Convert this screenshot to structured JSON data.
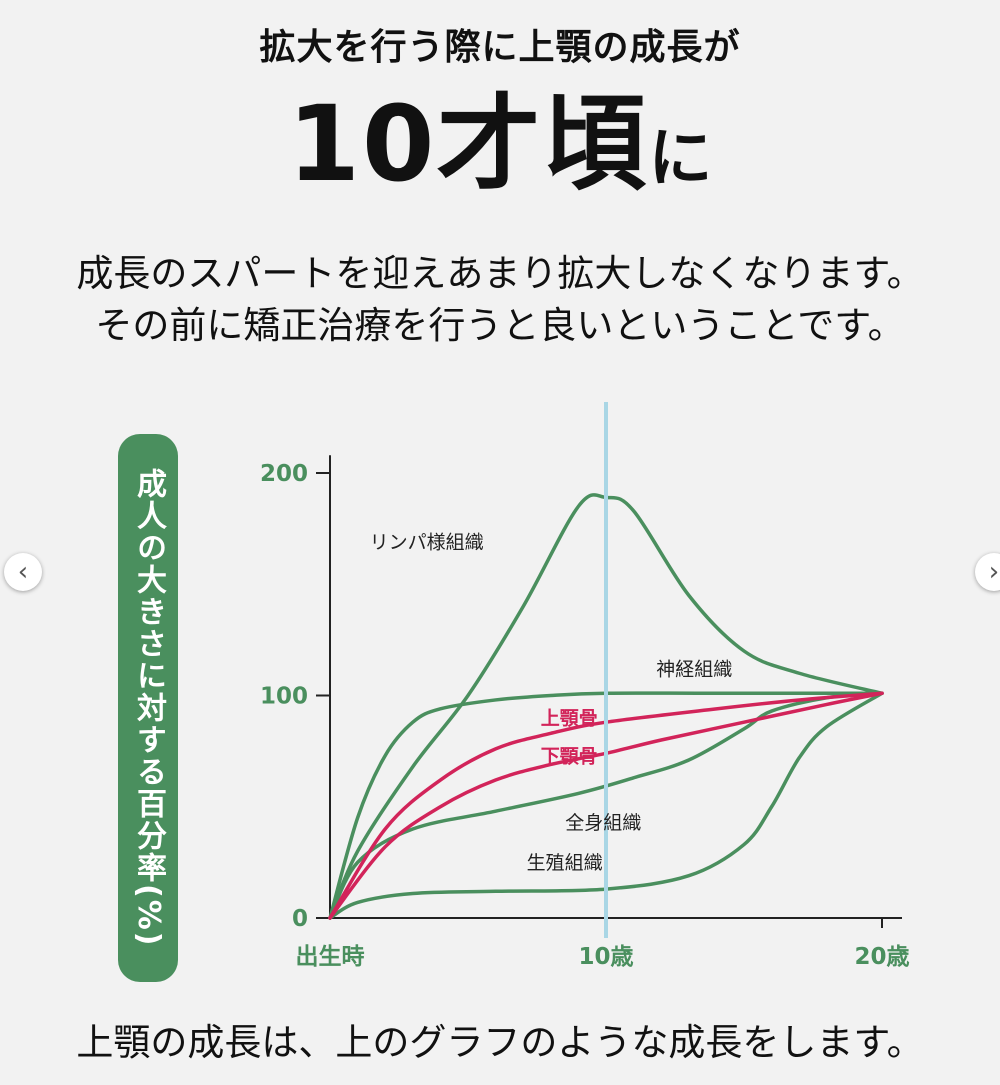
{
  "header": {
    "line1": "拡大を行う際に上顎の成長が",
    "big_main": "10才頃",
    "big_tail": "に",
    "lead_line1": "成長のスパートを迎えあまり拡大しなくなります。",
    "lead_line2": "その前に矯正治療を行うと良いということです。"
  },
  "footer": "上顎の成長は、上のグラフのような成長をします。",
  "nav": {
    "prev_icon": "chevron-left-icon",
    "next_icon": "chevron-right-icon",
    "prev": "‹",
    "next": "›"
  },
  "colors": {
    "green": "#4a8f5e",
    "red": "#d2245a",
    "marker": "#a9d6e5"
  },
  "chart_data": {
    "type": "line",
    "ylabel": "成人の大きさに対する百分率(%)",
    "xlabel": "",
    "x_ticks": [
      {
        "x": 0,
        "label": "出生時"
      },
      {
        "x": 10,
        "label": "10歳"
      },
      {
        "x": 20,
        "label": "20歳"
      }
    ],
    "y_ticks": [
      {
        "y": 0,
        "label": "0"
      },
      {
        "y": 100,
        "label": "100"
      },
      {
        "y": 200,
        "label": "200"
      }
    ],
    "xlim": [
      0,
      20
    ],
    "ylim": [
      0,
      200
    ],
    "marker_x": 10,
    "series": [
      {
        "name": "リンパ様組織",
        "color": "green",
        "label_at": [
          3.5,
          166
        ],
        "points": [
          [
            0,
            0
          ],
          [
            1,
            30
          ],
          [
            3,
            68
          ],
          [
            5,
            100
          ],
          [
            7,
            140
          ],
          [
            9,
            185
          ],
          [
            10,
            189
          ],
          [
            11,
            183
          ],
          [
            13,
            145
          ],
          [
            15,
            120
          ],
          [
            17,
            110
          ],
          [
            20,
            101
          ]
        ]
      },
      {
        "name": "神経組織",
        "color": "green",
        "label_at": [
          13.2,
          109
        ],
        "points": [
          [
            0,
            0
          ],
          [
            1,
            45
          ],
          [
            2,
            73
          ],
          [
            3,
            88
          ],
          [
            4,
            94
          ],
          [
            6,
            98
          ],
          [
            8,
            100
          ],
          [
            10,
            101
          ],
          [
            14,
            101
          ],
          [
            20,
            101
          ]
        ]
      },
      {
        "name": "上顎骨",
        "color": "red",
        "label_at": [
          9.7,
          87
        ],
        "points": [
          [
            0,
            0
          ],
          [
            2,
            40
          ],
          [
            4,
            62
          ],
          [
            6,
            76
          ],
          [
            8,
            83
          ],
          [
            10,
            88
          ],
          [
            14,
            94
          ],
          [
            17,
            98
          ],
          [
            20,
            101
          ]
        ]
      },
      {
        "name": "下顎骨",
        "color": "red",
        "label_at": [
          9.7,
          70
        ],
        "points": [
          [
            0,
            0
          ],
          [
            2,
            32
          ],
          [
            4,
            50
          ],
          [
            6,
            62
          ],
          [
            8,
            69
          ],
          [
            10,
            74
          ],
          [
            12,
            80
          ],
          [
            15,
            88
          ],
          [
            18,
            96
          ],
          [
            20,
            101
          ]
        ]
      },
      {
        "name": "全身組織",
        "color": "green",
        "label_at": [
          9.9,
          40
        ],
        "points": [
          [
            0,
            0
          ],
          [
            1,
            25
          ],
          [
            3,
            40
          ],
          [
            6,
            48
          ],
          [
            9,
            56
          ],
          [
            11,
            63
          ],
          [
            13,
            71
          ],
          [
            15,
            85
          ],
          [
            16,
            93
          ],
          [
            18,
            99
          ],
          [
            20,
            101
          ]
        ]
      },
      {
        "name": "生殖組織",
        "color": "green",
        "label_at": [
          8.5,
          22
        ],
        "points": [
          [
            0,
            0
          ],
          [
            1,
            7
          ],
          [
            3,
            11
          ],
          [
            6,
            12
          ],
          [
            10,
            13
          ],
          [
            13,
            19
          ],
          [
            15,
            33
          ],
          [
            16,
            50
          ],
          [
            17,
            72
          ],
          [
            18,
            86
          ],
          [
            20,
            101
          ]
        ]
      }
    ]
  }
}
